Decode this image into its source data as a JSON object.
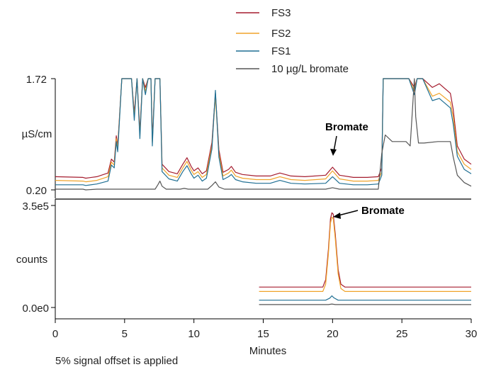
{
  "chart_data": [
    {
      "type": "line",
      "panel": "top",
      "xlabel": "Minutes",
      "ylabel": "µS/cm",
      "xlim": [
        0,
        30
      ],
      "ylim": [
        0.2,
        1.72
      ],
      "ytick_labels": [
        "0.20",
        "1.72"
      ],
      "xtick_labels": [
        "0",
        "5",
        "10",
        "15",
        "20",
        "25",
        "30"
      ],
      "xticks": [
        0,
        5,
        10,
        15,
        20,
        25,
        30
      ],
      "legend": {
        "placement": "top-center"
      },
      "series": [
        {
          "name": "FS3",
          "color": "#a51c2e",
          "x": [
            0,
            2,
            2.2,
            3,
            3.8,
            4.05,
            4.25,
            4.4,
            4.5,
            4.8,
            5.0,
            5.2,
            5.5,
            5.7,
            5.9,
            6.1,
            6.3,
            6.5,
            6.7,
            6.9,
            7.0,
            7.2,
            7.3,
            7.55,
            7.7,
            8.2,
            8.8,
            9.2,
            9.5,
            9.8,
            10.0,
            10.3,
            10.6,
            10.9,
            11.3,
            11.55,
            11.8,
            12.1,
            12.5,
            12.7,
            13.0,
            13.5,
            14.5,
            15.5,
            16.2,
            17.0,
            18,
            19.5,
            20.0,
            20.5,
            21.5,
            22.5,
            23.3,
            23.55,
            23.65,
            23.8,
            24.0,
            24.5,
            25.5,
            25.9,
            26.1,
            26.5,
            27.2,
            27.7,
            28.5,
            28.7,
            29.0,
            29.5,
            30
          ],
          "y": [
            0.38,
            0.37,
            0.36,
            0.38,
            0.43,
            0.62,
            0.58,
            0.94,
            0.8,
            1.72,
            1.72,
            1.72,
            1.72,
            1.25,
            1.72,
            1.0,
            1.72,
            1.6,
            1.72,
            1.72,
            0.9,
            1.72,
            1.72,
            1.72,
            0.55,
            0.45,
            0.42,
            0.55,
            0.64,
            0.52,
            0.46,
            0.5,
            0.42,
            0.46,
            0.85,
            1.52,
            0.75,
            0.44,
            0.48,
            0.52,
            0.44,
            0.41,
            0.39,
            0.39,
            0.43,
            0.39,
            0.38,
            0.4,
            0.51,
            0.4,
            0.37,
            0.37,
            0.38,
            0.5,
            1.72,
            1.72,
            1.72,
            1.72,
            1.72,
            1.6,
            1.72,
            1.72,
            1.6,
            1.65,
            1.52,
            1.3,
            0.8,
            0.62,
            0.55
          ]
        },
        {
          "name": "FS2",
          "color": "#f0a32a",
          "x": [
            0,
            2,
            2.2,
            3,
            3.8,
            4.05,
            4.25,
            4.4,
            4.5,
            4.8,
            5.0,
            5.2,
            5.5,
            5.7,
            5.9,
            6.1,
            6.3,
            6.5,
            6.7,
            6.9,
            7.0,
            7.2,
            7.3,
            7.55,
            7.7,
            8.2,
            8.8,
            9.2,
            9.5,
            9.8,
            10.0,
            10.3,
            10.6,
            10.9,
            11.3,
            11.55,
            11.8,
            12.1,
            12.5,
            12.7,
            13.0,
            13.5,
            14.5,
            15.5,
            16.2,
            17.0,
            18,
            19.5,
            20.0,
            20.5,
            21.5,
            22.5,
            23.3,
            23.55,
            23.65,
            23.8,
            24.0,
            24.5,
            25.5,
            25.9,
            26.1,
            26.5,
            27.2,
            27.7,
            28.5,
            28.7,
            29.0,
            29.5,
            30
          ],
          "y": [
            0.33,
            0.32,
            0.31,
            0.33,
            0.38,
            0.58,
            0.54,
            0.9,
            0.76,
            1.72,
            1.72,
            1.72,
            1.72,
            1.2,
            1.72,
            0.95,
            1.72,
            1.55,
            1.72,
            1.72,
            0.85,
            1.72,
            1.72,
            1.72,
            0.5,
            0.4,
            0.37,
            0.5,
            0.59,
            0.47,
            0.41,
            0.45,
            0.37,
            0.41,
            0.8,
            1.48,
            0.7,
            0.39,
            0.43,
            0.47,
            0.39,
            0.36,
            0.34,
            0.34,
            0.38,
            0.34,
            0.33,
            0.35,
            0.46,
            0.35,
            0.32,
            0.32,
            0.33,
            0.45,
            1.72,
            1.72,
            1.72,
            1.72,
            1.72,
            1.55,
            1.72,
            1.72,
            1.48,
            1.52,
            1.4,
            1.2,
            0.72,
            0.55,
            0.48
          ]
        },
        {
          "name": "FS1",
          "color": "#1f6f93",
          "x": [
            0,
            2,
            2.2,
            3,
            3.8,
            4.05,
            4.25,
            4.4,
            4.5,
            4.8,
            5.0,
            5.2,
            5.5,
            5.7,
            5.9,
            6.1,
            6.3,
            6.5,
            6.7,
            6.9,
            7.0,
            7.2,
            7.3,
            7.55,
            7.7,
            8.2,
            8.8,
            9.2,
            9.5,
            9.8,
            10.0,
            10.3,
            10.6,
            10.9,
            11.3,
            11.55,
            11.8,
            12.1,
            12.5,
            12.7,
            13.0,
            13.5,
            14.5,
            15.5,
            16.2,
            17.0,
            18,
            19.5,
            20.0,
            20.5,
            21.5,
            22.5,
            23.3,
            23.55,
            23.65,
            23.8,
            24.0,
            24.5,
            25.5,
            25.9,
            26.1,
            26.5,
            27.2,
            27.7,
            28.5,
            28.7,
            29.0,
            29.5,
            30
          ],
          "y": [
            0.27,
            0.27,
            0.26,
            0.28,
            0.32,
            0.54,
            0.5,
            0.86,
            0.72,
            1.72,
            1.72,
            1.72,
            1.72,
            1.15,
            1.72,
            0.9,
            1.72,
            1.5,
            1.72,
            1.72,
            0.8,
            1.72,
            1.72,
            1.72,
            0.45,
            0.35,
            0.32,
            0.45,
            0.53,
            0.42,
            0.36,
            0.4,
            0.32,
            0.36,
            0.76,
            1.56,
            0.65,
            0.34,
            0.38,
            0.41,
            0.34,
            0.31,
            0.29,
            0.29,
            0.33,
            0.29,
            0.28,
            0.29,
            0.38,
            0.29,
            0.27,
            0.27,
            0.28,
            0.4,
            1.72,
            1.72,
            1.72,
            1.72,
            1.72,
            1.5,
            1.72,
            1.72,
            1.42,
            1.45,
            1.32,
            1.1,
            0.66,
            0.48,
            0.42
          ]
        },
        {
          "name": "10 µg/L bromate",
          "color": "#555555",
          "x": [
            0,
            2,
            2.2,
            3,
            5,
            7.2,
            7.4,
            7.55,
            7.7,
            8.0,
            9.0,
            9.3,
            9.6,
            11.0,
            11.3,
            11.55,
            11.8,
            12.2,
            15,
            19.5,
            20.0,
            20.5,
            23.3,
            23.55,
            23.8,
            24.3,
            25.3,
            25.6,
            25.9,
            26.0,
            26.2,
            26.6,
            27.6,
            28.5,
            28.7,
            29.0,
            29.5,
            30
          ],
          "y": [
            0.21,
            0.21,
            0.2,
            0.21,
            0.21,
            0.21,
            0.27,
            0.32,
            0.25,
            0.21,
            0.21,
            0.22,
            0.21,
            0.21,
            0.26,
            0.31,
            0.24,
            0.21,
            0.21,
            0.21,
            0.23,
            0.21,
            0.21,
            0.7,
            0.95,
            0.86,
            0.86,
            0.8,
            1.72,
            1.2,
            0.84,
            0.84,
            0.86,
            0.86,
            0.65,
            0.4,
            0.3,
            0.25
          ]
        }
      ],
      "annotations": [
        {
          "text": "Bromate",
          "x": 20
        }
      ]
    },
    {
      "type": "line",
      "panel": "bottom",
      "xlabel": "Minutes",
      "ylabel": "counts",
      "xlim": [
        0,
        30
      ],
      "ylim": [
        0,
        350000
      ],
      "ytick_labels": [
        "0.0e0",
        "3.5e5"
      ],
      "xtick_labels": [
        "0",
        "5",
        "10",
        "15",
        "20",
        "25",
        "30"
      ],
      "xticks": [
        0,
        5,
        10,
        15,
        20,
        25,
        30
      ],
      "series": [
        {
          "name": "FS3",
          "color": "#a51c2e",
          "x": [
            14.7,
            19.3,
            19.5,
            19.7,
            19.85,
            19.95,
            20.05,
            20.2,
            20.4,
            20.6,
            20.9,
            30
          ],
          "y": [
            70000,
            70000,
            95000,
            200000,
            305000,
            325000,
            320000,
            250000,
            130000,
            80000,
            70000,
            70000
          ]
        },
        {
          "name": "FS2",
          "color": "#f0a32a",
          "x": [
            14.7,
            19.3,
            19.5,
            19.7,
            19.85,
            19.95,
            20.05,
            20.2,
            20.4,
            20.6,
            20.9,
            30
          ],
          "y": [
            55000,
            55000,
            80000,
            185000,
            290000,
            310000,
            305000,
            235000,
            115000,
            65000,
            55000,
            55000
          ]
        },
        {
          "name": "FS1",
          "color": "#1f6f93",
          "x": [
            14.7,
            19.5,
            19.8,
            19.95,
            20.1,
            20.4,
            30
          ],
          "y": [
            25000,
            25000,
            32000,
            40000,
            33000,
            25000,
            25000
          ]
        },
        {
          "name": "10 µg/L bromate",
          "color": "#555555",
          "x": [
            14.7,
            19.7,
            19.95,
            20.2,
            30
          ],
          "y": [
            10000,
            10000,
            12000,
            10000,
            10000
          ]
        }
      ],
      "annotations": [
        {
          "text": "Bromate",
          "x": 20
        }
      ]
    }
  ],
  "footnote": "5% signal offset is applied"
}
